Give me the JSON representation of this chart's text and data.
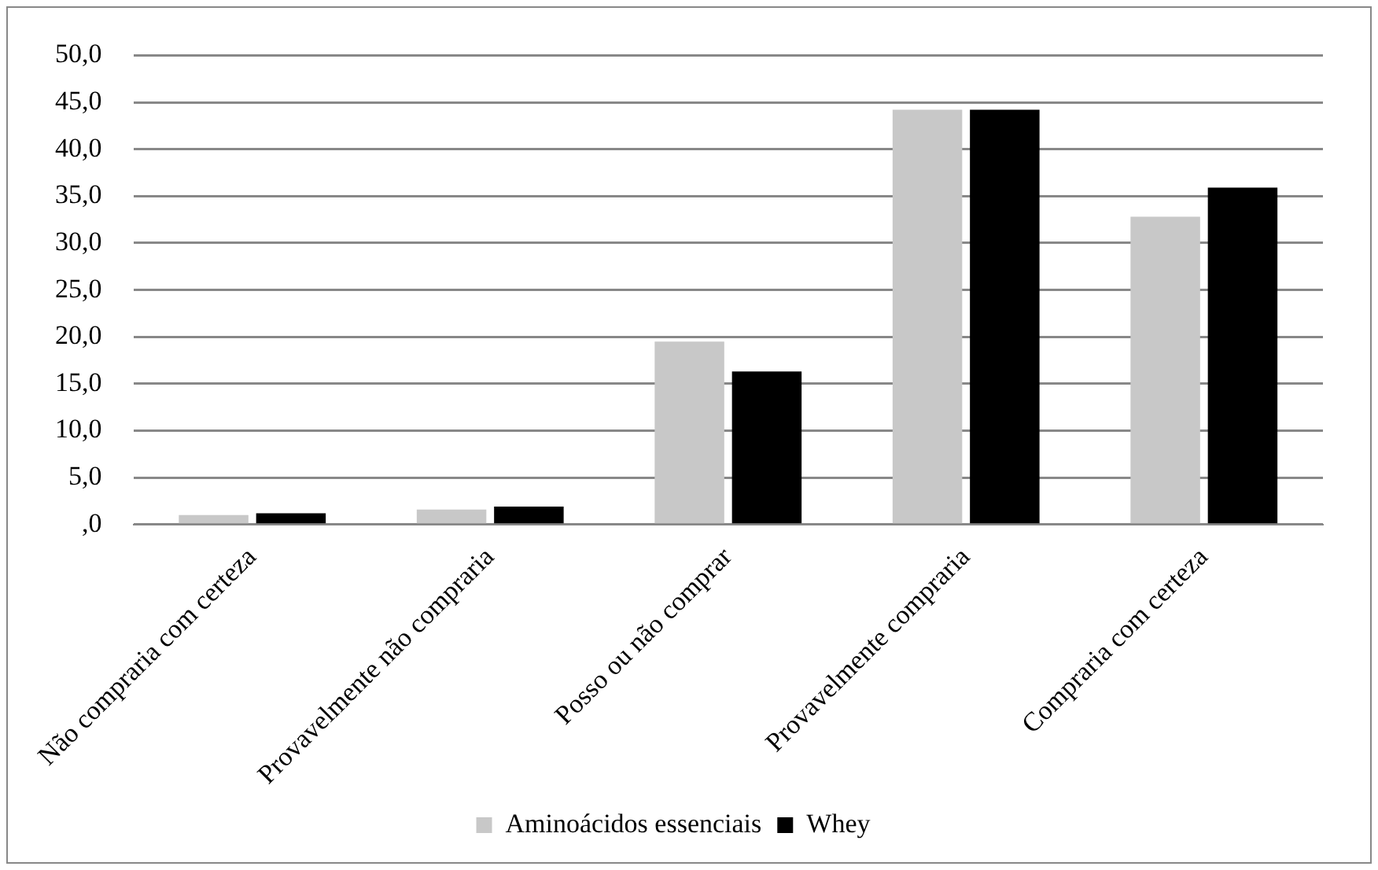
{
  "chart_data": {
    "type": "bar",
    "categories": [
      "Não compraria com certeza",
      "Provavelmente não compraria",
      "Posso ou não comprar",
      "Provavelmente compraria",
      "Compraria com certeza"
    ],
    "series": [
      {
        "name": "Aminoácidos essenciais",
        "color": "#c8c8c8",
        "values": [
          1.0,
          1.6,
          19.5,
          44.2,
          32.8
        ]
      },
      {
        "name": "Whey",
        "color": "#000000",
        "values": [
          1.2,
          1.9,
          16.3,
          44.2,
          35.9
        ]
      }
    ],
    "ylim": [
      0,
      50
    ],
    "yticks": [
      {
        "value": 0,
        "label": ",0"
      },
      {
        "value": 5,
        "label": "5,0"
      },
      {
        "value": 10,
        "label": "10,0"
      },
      {
        "value": 15,
        "label": "15,0"
      },
      {
        "value": 20,
        "label": "20,0"
      },
      {
        "value": 25,
        "label": "25,0"
      },
      {
        "value": 30,
        "label": "30,0"
      },
      {
        "value": 35,
        "label": "35,0"
      },
      {
        "value": 40,
        "label": "40,0"
      },
      {
        "value": 45,
        "label": "45,0"
      },
      {
        "value": 50,
        "label": "50,0"
      }
    ],
    "grid": "y",
    "legend": "bottom"
  }
}
